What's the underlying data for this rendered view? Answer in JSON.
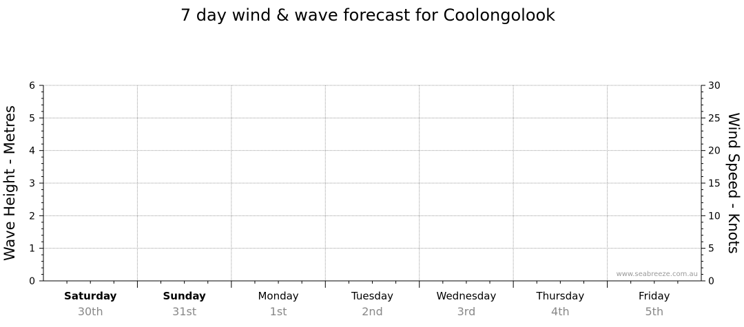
{
  "chart_data": {
    "type": "line",
    "title": "7 day wind & wave forecast for Coolongolook",
    "ylabel_left": "Wave Height - Metres",
    "ylabel_right": "Wind Speed - Knots",
    "ylim_left": [
      0,
      6
    ],
    "ylim_right": [
      0,
      30
    ],
    "yticks_left": [
      "0",
      "1",
      "2",
      "3",
      "4",
      "5",
      "6"
    ],
    "yticks_right": [
      "0",
      "5",
      "10",
      "15",
      "20",
      "25",
      "30"
    ],
    "days": [
      {
        "name": "Saturday",
        "date": "30th",
        "bold": true
      },
      {
        "name": "Sunday",
        "date": "31st",
        "bold": true
      },
      {
        "name": "Monday",
        "date": "1st",
        "bold": false
      },
      {
        "name": "Tuesday",
        "date": "2nd",
        "bold": false
      },
      {
        "name": "Wednesday",
        "date": "3rd",
        "bold": false
      },
      {
        "name": "Thursday",
        "date": "4th",
        "bold": false
      },
      {
        "name": "Friday",
        "date": "5th",
        "bold": false
      }
    ],
    "series": [],
    "grid": true,
    "watermark": "www.seabreeze.com.au"
  }
}
